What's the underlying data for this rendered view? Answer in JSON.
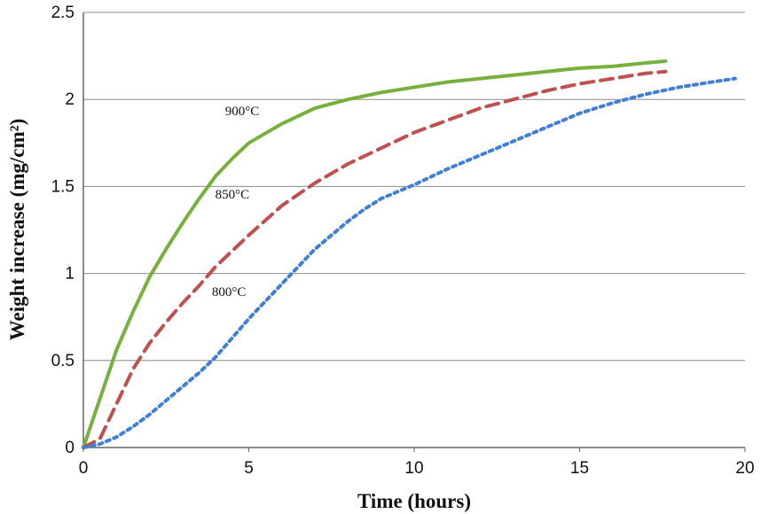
{
  "chart_data": {
    "type": "line",
    "title": "",
    "xlabel": "Time (hours)",
    "ylabel": "Weight increase (mg/cm²)",
    "xlim": [
      0,
      20
    ],
    "ylim": [
      0,
      2.5
    ],
    "x_ticks": [
      0,
      5,
      10,
      15,
      20
    ],
    "y_ticks": [
      0,
      0.5,
      1,
      1.5,
      2,
      2.5
    ],
    "x_tick_labels": [
      "0",
      "5",
      "10",
      "15",
      "20"
    ],
    "y_tick_labels": [
      "0",
      "0.5",
      "1",
      "1.5",
      "2",
      "2.5"
    ],
    "grid": "horizontal",
    "legend": "none",
    "series": [
      {
        "name": "900°C",
        "color": "#77b03c",
        "line_style": "solid",
        "x": [
          0,
          0.5,
          1,
          1.5,
          2,
          2.5,
          3,
          3.5,
          4,
          4.5,
          5,
          6,
          7,
          8,
          9,
          10,
          11,
          12,
          13,
          14,
          15,
          16,
          17,
          17.6
        ],
        "y": [
          0,
          0.28,
          0.56,
          0.78,
          0.98,
          1.14,
          1.29,
          1.43,
          1.56,
          1.66,
          1.75,
          1.86,
          1.95,
          2.0,
          2.04,
          2.07,
          2.1,
          2.12,
          2.14,
          2.16,
          2.18,
          2.19,
          2.21,
          2.22
        ]
      },
      {
        "name": "850°C",
        "color": "#c0504d",
        "line_style": "dashed",
        "x": [
          0,
          0.5,
          1,
          1.5,
          2,
          2.5,
          3,
          3.5,
          4,
          4.5,
          5,
          6,
          7,
          8,
          9,
          10,
          11,
          12,
          13,
          14,
          15,
          16,
          17,
          17.6
        ],
        "y": [
          0,
          0.05,
          0.25,
          0.45,
          0.6,
          0.72,
          0.83,
          0.93,
          1.04,
          1.13,
          1.22,
          1.39,
          1.52,
          1.63,
          1.72,
          1.81,
          1.88,
          1.95,
          2.0,
          2.05,
          2.09,
          2.12,
          2.15,
          2.16
        ]
      },
      {
        "name": "800°C",
        "color": "#3f7fd6",
        "line_style": "dotted",
        "x": [
          0,
          0.5,
          1,
          1.5,
          2,
          2.5,
          3,
          3.5,
          4,
          4.5,
          5,
          5.5,
          6,
          6.5,
          7,
          7.5,
          8,
          8.5,
          9,
          9.5,
          10,
          11,
          12,
          13,
          14,
          15,
          16,
          17,
          18,
          19,
          19.7
        ],
        "y": [
          0,
          0.02,
          0.06,
          0.12,
          0.19,
          0.27,
          0.35,
          0.43,
          0.52,
          0.63,
          0.74,
          0.84,
          0.94,
          1.04,
          1.14,
          1.22,
          1.3,
          1.37,
          1.43,
          1.47,
          1.51,
          1.6,
          1.68,
          1.76,
          1.84,
          1.92,
          1.98,
          2.03,
          2.07,
          2.1,
          2.12
        ]
      }
    ],
    "annotations": [
      {
        "text": "900°C",
        "x": 4.8,
        "y": 1.91
      },
      {
        "text": "850°C",
        "x": 4.5,
        "y": 1.43
      },
      {
        "text": "800°C",
        "x": 4.4,
        "y": 0.87
      }
    ]
  }
}
